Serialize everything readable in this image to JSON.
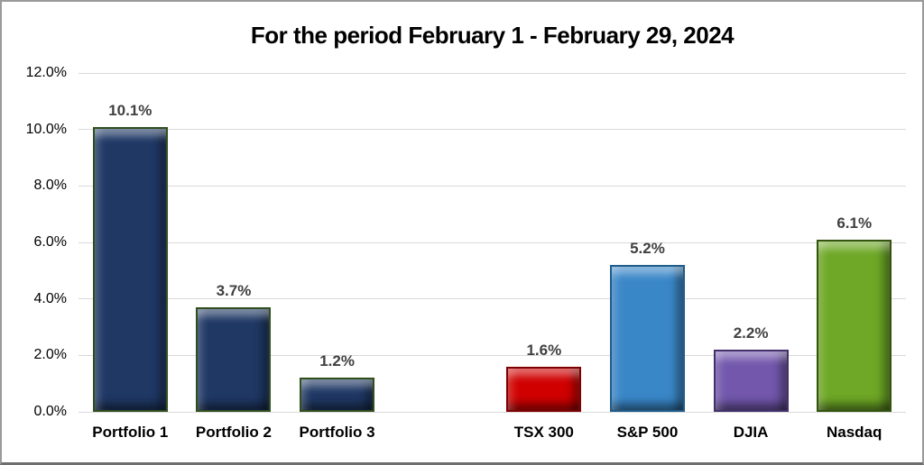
{
  "window": {
    "background": "#ffffff",
    "frame_border_color": "#9a9a9a"
  },
  "chart_data": {
    "type": "bar",
    "title": "For the period February 1 - February 29, 2024",
    "categories": [
      "Portfolio 1",
      "Portfolio 2",
      "Portfolio 3",
      "TSX 300",
      "S&P 500",
      "DJIA",
      "Nasdaq"
    ],
    "values": [
      10.1,
      3.7,
      1.2,
      1.6,
      5.2,
      2.2,
      6.1
    ],
    "data_labels": [
      "10.1%",
      "3.7%",
      "1.2%",
      "1.6%",
      "5.2%",
      "2.2%",
      "6.1%"
    ],
    "groups": [
      [
        "Portfolio 1",
        "Portfolio 2",
        "Portfolio 3"
      ],
      [
        "TSX 300",
        "S&P 500",
        "DJIA",
        "Nasdaq"
      ]
    ],
    "bar_fills": [
      "#1F3864",
      "#1F3864",
      "#1F3864",
      "#D00000",
      "#3A87C8",
      "#7257AC",
      "#6EA826"
    ],
    "bar_borders": [
      "#2F4F1E",
      "#2F4F1E",
      "#2F4F1E",
      "#7F0000",
      "#1E5C8A",
      "#42306B",
      "#33540F"
    ],
    "slots": [
      0,
      1,
      2,
      4,
      5,
      6,
      7
    ],
    "slot_count": 8,
    "xlabel": "",
    "ylabel": "",
    "ylim": [
      0,
      12
    ],
    "ytick_step": 2,
    "ytick_labels": [
      "0.0%",
      "2.0%",
      "4.0%",
      "6.0%",
      "8.0%",
      "10.0%",
      "12.0%"
    ],
    "grid": true,
    "gridline_color": "#D9D9D9",
    "value_label_color": "#404040",
    "axis_label_color": "#000000",
    "legend": "none",
    "bevel_3d": true
  }
}
